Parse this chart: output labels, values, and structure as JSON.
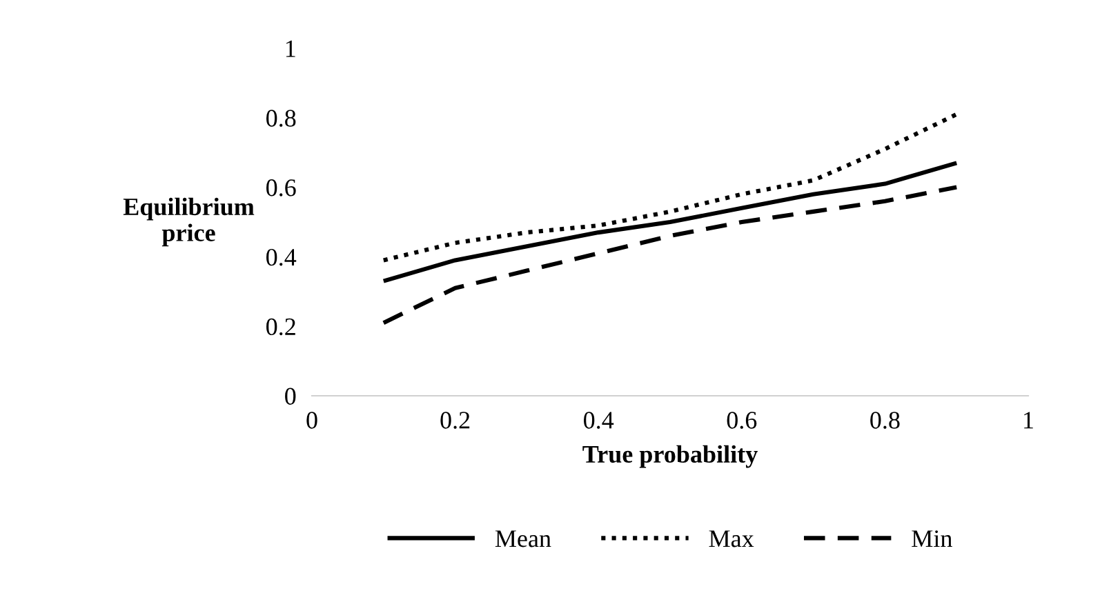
{
  "chart_data": {
    "type": "line",
    "xlabel": "True probability",
    "ylabel": "Equilibrium\nprice",
    "x": [
      0.1,
      0.2,
      0.3,
      0.4,
      0.5,
      0.6,
      0.7,
      0.8,
      0.9
    ],
    "series": [
      {
        "name": "Mean",
        "color": "#000000",
        "line_style": "solid",
        "values": [
          0.33,
          0.39,
          0.43,
          0.47,
          0.5,
          0.54,
          0.58,
          0.61,
          0.67
        ]
      },
      {
        "name": "Max",
        "color": "#000000",
        "line_style": "dotted",
        "values": [
          0.39,
          0.44,
          0.47,
          0.49,
          0.53,
          0.58,
          0.62,
          0.71,
          0.81
        ]
      },
      {
        "name": "Min",
        "color": "#000000",
        "line_style": "dashed",
        "values": [
          0.21,
          0.31,
          0.36,
          0.41,
          0.46,
          0.5,
          0.53,
          0.56,
          0.6
        ]
      }
    ],
    "xlim": [
      0,
      1
    ],
    "xticks": [
      0,
      0.2,
      0.4,
      0.6,
      0.8,
      1
    ],
    "ylim": [
      0,
      1
    ],
    "yticks": [
      0,
      0.2,
      0.4,
      0.6,
      0.8,
      1
    ],
    "grid": false,
    "legend": "bottom",
    "marker": "none"
  }
}
